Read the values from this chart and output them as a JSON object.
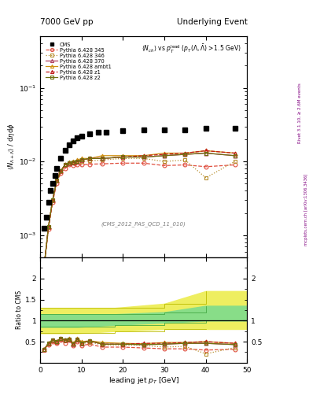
{
  "title_left": "7000 GeV pp",
  "title_right": "Underlying Event",
  "watermark": "(CMS_2012_PAS_QCD_11_010)",
  "right_label1": "Rivet 3.1.10, ≥ 2.6M events",
  "right_label2": "mcplots.cern.ch [arXiv:1306.3436]",
  "xlim": [
    0,
    50
  ],
  "ylim_main_lo": 0.0005,
  "ylim_main_hi": 0.5,
  "ylim_ratio_lo": 0.0,
  "ylim_ratio_hi": 2.5,
  "cms_x": [
    1,
    1.5,
    2,
    2.5,
    3,
    3.5,
    4,
    5,
    6,
    7,
    8,
    9,
    10,
    12,
    14,
    16,
    20,
    25,
    30,
    35,
    40,
    47
  ],
  "cms_y": [
    0.00125,
    0.00175,
    0.0028,
    0.004,
    0.005,
    0.0065,
    0.008,
    0.011,
    0.014,
    0.017,
    0.019,
    0.021,
    0.022,
    0.024,
    0.025,
    0.025,
    0.026,
    0.027,
    0.027,
    0.027,
    0.028,
    0.028
  ],
  "p345_x": [
    1,
    2,
    3,
    4,
    5,
    6,
    7,
    8,
    9,
    10,
    12,
    15,
    20,
    25,
    30,
    35,
    40,
    47
  ],
  "p345_y": [
    0.0004,
    0.0012,
    0.0028,
    0.005,
    0.007,
    0.008,
    0.009,
    0.0088,
    0.009,
    0.009,
    0.0092,
    0.0093,
    0.0095,
    0.0095,
    0.0088,
    0.009,
    0.0085,
    0.009
  ],
  "p346_x": [
    1,
    2,
    3,
    4,
    5,
    6,
    7,
    8,
    9,
    10,
    12,
    15,
    20,
    25,
    30,
    35,
    40,
    47
  ],
  "p346_y": [
    0.0004,
    0.0013,
    0.003,
    0.0055,
    0.0075,
    0.009,
    0.0095,
    0.0095,
    0.0098,
    0.01,
    0.0102,
    0.0105,
    0.011,
    0.011,
    0.01,
    0.0105,
    0.006,
    0.01
  ],
  "p370_x": [
    1,
    2,
    3,
    4,
    5,
    6,
    7,
    8,
    9,
    10,
    12,
    15,
    20,
    25,
    30,
    35,
    40,
    47
  ],
  "p370_y": [
    0.0004,
    0.0013,
    0.003,
    0.0055,
    0.0075,
    0.009,
    0.0095,
    0.0097,
    0.01,
    0.0105,
    0.011,
    0.011,
    0.0115,
    0.0115,
    0.012,
    0.0125,
    0.013,
    0.012
  ],
  "pambt1_x": [
    1,
    2,
    3,
    4,
    5,
    6,
    7,
    8,
    9,
    10,
    12,
    15,
    20,
    25,
    30,
    35,
    40,
    47
  ],
  "pambt1_y": [
    0.0004,
    0.0013,
    0.003,
    0.0055,
    0.0075,
    0.009,
    0.0098,
    0.01,
    0.0105,
    0.011,
    0.011,
    0.012,
    0.012,
    0.012,
    0.013,
    0.013,
    0.014,
    0.013
  ],
  "pz1_x": [
    1,
    2,
    3,
    4,
    5,
    6,
    7,
    8,
    9,
    10,
    12,
    15,
    20,
    25,
    30,
    35,
    40,
    47
  ],
  "pz1_y": [
    0.0004,
    0.0013,
    0.003,
    0.0055,
    0.0075,
    0.009,
    0.0095,
    0.0097,
    0.01,
    0.0105,
    0.011,
    0.011,
    0.0115,
    0.012,
    0.0125,
    0.013,
    0.014,
    0.013
  ],
  "pz2_x": [
    1,
    2,
    3,
    4,
    5,
    6,
    7,
    8,
    9,
    10,
    12,
    15,
    20,
    25,
    30,
    35,
    40,
    47
  ],
  "pz2_y": [
    0.0004,
    0.0013,
    0.003,
    0.0055,
    0.0075,
    0.009,
    0.0095,
    0.0098,
    0.01,
    0.0105,
    0.011,
    0.011,
    0.0115,
    0.0115,
    0.012,
    0.0125,
    0.013,
    0.012
  ],
  "ratio_345_x": [
    1,
    2,
    3,
    4,
    5,
    6,
    7,
    8,
    9,
    10,
    12,
    15,
    20,
    25,
    30,
    35,
    40,
    47
  ],
  "ratio_345_y": [
    0.32,
    0.43,
    0.5,
    0.46,
    0.54,
    0.47,
    0.53,
    0.41,
    0.5,
    0.41,
    0.44,
    0.37,
    0.37,
    0.35,
    0.33,
    0.33,
    0.3,
    0.32
  ],
  "ratio_346_x": [
    1,
    2,
    3,
    4,
    5,
    6,
    7,
    8,
    9,
    10,
    12,
    15,
    20,
    25,
    30,
    35,
    40,
    47
  ],
  "ratio_346_y": [
    0.32,
    0.46,
    0.54,
    0.51,
    0.58,
    0.53,
    0.56,
    0.44,
    0.54,
    0.45,
    0.49,
    0.42,
    0.42,
    0.41,
    0.37,
    0.39,
    0.21,
    0.36
  ],
  "ratio_370_x": [
    1,
    2,
    3,
    4,
    5,
    6,
    7,
    8,
    9,
    10,
    12,
    15,
    20,
    25,
    30,
    35,
    40,
    47
  ],
  "ratio_370_y": [
    0.32,
    0.46,
    0.54,
    0.51,
    0.58,
    0.53,
    0.56,
    0.45,
    0.56,
    0.47,
    0.52,
    0.44,
    0.44,
    0.43,
    0.44,
    0.46,
    0.46,
    0.43
  ],
  "ratio_ambt1_x": [
    1,
    2,
    3,
    4,
    5,
    6,
    7,
    8,
    9,
    10,
    12,
    15,
    20,
    25,
    30,
    35,
    40,
    47
  ],
  "ratio_ambt1_y": [
    0.32,
    0.46,
    0.54,
    0.51,
    0.58,
    0.53,
    0.58,
    0.46,
    0.58,
    0.5,
    0.52,
    0.48,
    0.46,
    0.45,
    0.48,
    0.48,
    0.5,
    0.46
  ],
  "ratio_z1_x": [
    1,
    2,
    3,
    4,
    5,
    6,
    7,
    8,
    9,
    10,
    12,
    15,
    20,
    25,
    30,
    35,
    40,
    47
  ],
  "ratio_z1_y": [
    0.32,
    0.46,
    0.54,
    0.51,
    0.58,
    0.53,
    0.56,
    0.45,
    0.56,
    0.47,
    0.52,
    0.44,
    0.44,
    0.46,
    0.46,
    0.48,
    0.5,
    0.46
  ],
  "ratio_z2_x": [
    1,
    2,
    3,
    4,
    5,
    6,
    7,
    8,
    9,
    10,
    12,
    15,
    20,
    25,
    30,
    35,
    40,
    47
  ],
  "ratio_z2_y": [
    0.32,
    0.46,
    0.54,
    0.51,
    0.58,
    0.53,
    0.56,
    0.45,
    0.56,
    0.47,
    0.52,
    0.44,
    0.44,
    0.43,
    0.44,
    0.46,
    0.46,
    0.43
  ],
  "color_345": "#e05040",
  "color_346": "#b89030",
  "color_370": "#b04060",
  "color_ambt1": "#d09010",
  "color_z1": "#c01818",
  "color_z2": "#707010",
  "green_color": "#88dd88",
  "yellow_color": "#eeee60",
  "green_edge": "#44aa44",
  "yellow_edge": "#bbbb00"
}
